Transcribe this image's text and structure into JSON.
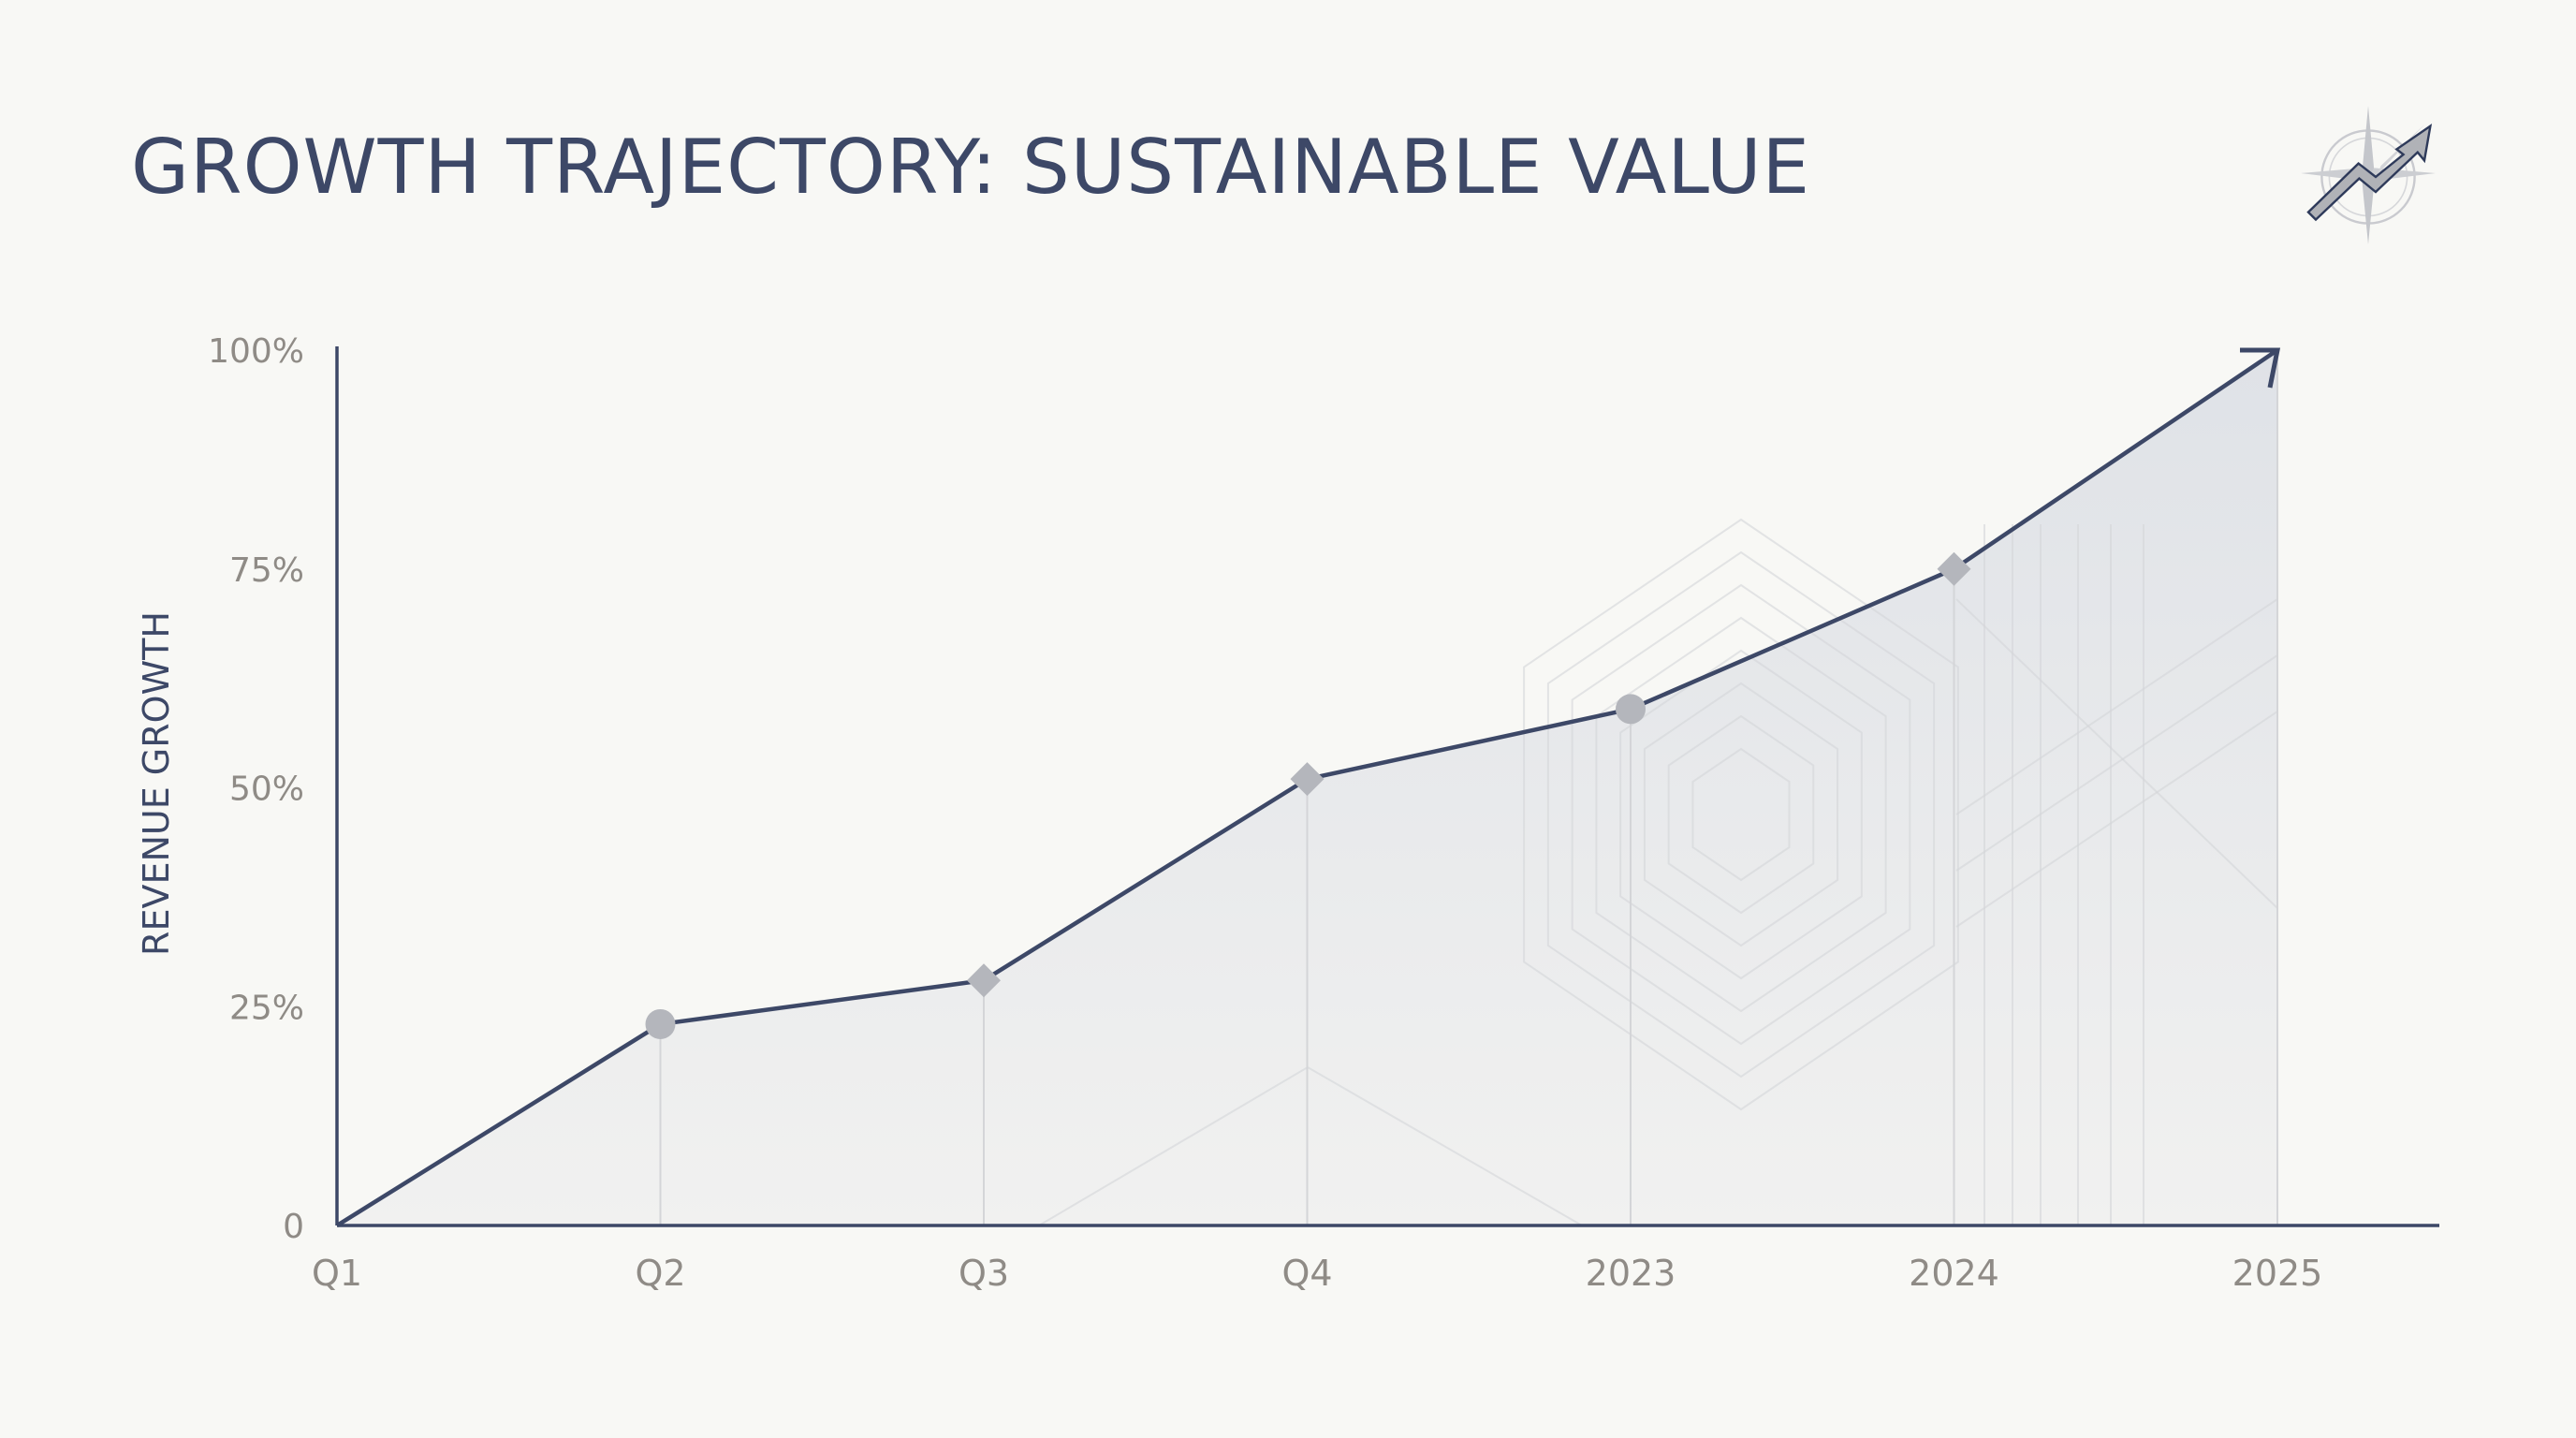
{
  "chart_data": {
    "type": "area",
    "title": "GROWTH TRAJECTORY: SUSTAINABLE VALUE",
    "xlabel": "",
    "ylabel": "REVENUE GROWTH",
    "categories": [
      "Q1",
      "Q2",
      "Q3",
      "Q4",
      "2023",
      "2024",
      "2025"
    ],
    "values": [
      0,
      23,
      28,
      51,
      59,
      75,
      100
    ],
    "markers": [
      "none",
      "circle",
      "diamond",
      "diamond",
      "circle",
      "diamond",
      "arrow"
    ],
    "ylim": [
      0,
      100
    ],
    "yticks": [
      0,
      25,
      50,
      75,
      100
    ],
    "ytick_labels": [
      "0",
      "25%",
      "50%",
      "75%",
      "100%"
    ],
    "grid": false,
    "colors": {
      "line": "#3d4867",
      "fill": "#e6e8ec",
      "marker": "#b4b6bc",
      "text": "#8f8b86",
      "title": "#3d4867"
    }
  },
  "logo": {
    "icon": "compass-growth-arrow-icon"
  }
}
